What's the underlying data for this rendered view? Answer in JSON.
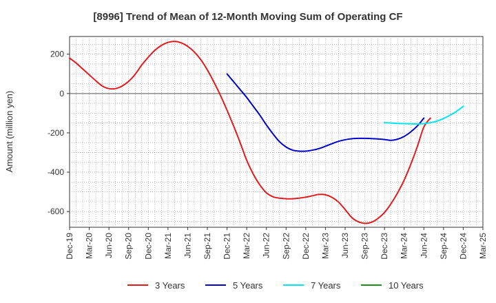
{
  "chart_data": {
    "type": "line",
    "title": "[8996]  Trend of Mean of 12-Month Moving Sum of Operating CF",
    "xlabel": "",
    "ylabel": "Amount (million yen)",
    "ylim": [
      -680,
      290
    ],
    "yticks": [
      200,
      0,
      -200,
      -400,
      -600
    ],
    "grid": true,
    "legend_position": "bottom",
    "x_tick_labels": [
      "Dec-19",
      "Mar-20",
      "Jun-20",
      "Sep-20",
      "Dec-20",
      "Mar-21",
      "Jun-21",
      "Sep-21",
      "Dec-21",
      "Mar-22",
      "Jun-22",
      "Sep-22",
      "Dec-22",
      "Mar-23",
      "Jun-23",
      "Sep-23",
      "Dec-23",
      "Mar-24",
      "Jun-24",
      "Sep-24",
      "Dec-24",
      "Mar-25"
    ],
    "series": [
      {
        "name": "3 Years",
        "color": "#e31a1c",
        "points": [
          [
            0,
            180
          ],
          [
            1,
            155
          ],
          [
            2,
            125
          ],
          [
            3,
            95
          ],
          [
            4,
            65
          ],
          [
            5,
            38
          ],
          [
            6,
            25
          ],
          [
            7,
            25
          ],
          [
            8,
            38
          ],
          [
            9,
            62
          ],
          [
            10,
            98
          ],
          [
            11,
            145
          ],
          [
            12,
            185
          ],
          [
            13,
            220
          ],
          [
            14,
            245
          ],
          [
            15,
            260
          ],
          [
            16,
            265
          ],
          [
            17,
            258
          ],
          [
            18,
            240
          ],
          [
            19,
            212
          ],
          [
            20,
            172
          ],
          [
            21,
            120
          ],
          [
            22,
            58
          ],
          [
            23,
            -10
          ],
          [
            24,
            -85
          ],
          [
            25,
            -165
          ],
          [
            26,
            -250
          ],
          [
            27,
            -340
          ],
          [
            28,
            -410
          ],
          [
            29,
            -465
          ],
          [
            30,
            -505
          ],
          [
            31,
            -525
          ],
          [
            32,
            -532
          ],
          [
            33,
            -535
          ],
          [
            34,
            -535
          ],
          [
            35,
            -532
          ],
          [
            36,
            -527
          ],
          [
            37,
            -520
          ],
          [
            38,
            -513
          ],
          [
            39,
            -515
          ],
          [
            40,
            -528
          ],
          [
            41,
            -552
          ],
          [
            42,
            -590
          ],
          [
            43,
            -630
          ],
          [
            44,
            -652
          ],
          [
            45,
            -660
          ],
          [
            46,
            -655
          ],
          [
            47,
            -635
          ],
          [
            48,
            -605
          ],
          [
            49,
            -560
          ],
          [
            50,
            -505
          ],
          [
            51,
            -440
          ],
          [
            52,
            -360
          ],
          [
            53,
            -270
          ],
          [
            54,
            -170
          ],
          [
            55,
            -125
          ]
        ]
      },
      {
        "name": "5 Years",
        "color": "#0000cc",
        "points": [
          [
            24,
            100
          ],
          [
            25,
            60
          ],
          [
            26,
            20
          ],
          [
            27,
            -20
          ],
          [
            28,
            -65
          ],
          [
            29,
            -110
          ],
          [
            30,
            -160
          ],
          [
            31,
            -205
          ],
          [
            32,
            -245
          ],
          [
            33,
            -272
          ],
          [
            34,
            -288
          ],
          [
            35,
            -293
          ],
          [
            36,
            -293
          ],
          [
            37,
            -288
          ],
          [
            38,
            -280
          ],
          [
            39,
            -268
          ],
          [
            40,
            -255
          ],
          [
            41,
            -243
          ],
          [
            42,
            -235
          ],
          [
            43,
            -230
          ],
          [
            44,
            -228
          ],
          [
            45,
            -228
          ],
          [
            46,
            -229
          ],
          [
            47,
            -231
          ],
          [
            48,
            -234
          ],
          [
            49,
            -238
          ],
          [
            50,
            -232
          ],
          [
            51,
            -218
          ],
          [
            52,
            -195
          ],
          [
            53,
            -165
          ],
          [
            54,
            -125
          ]
        ]
      },
      {
        "name": "7 Years",
        "color": "#00e5ee",
        "points": [
          [
            48,
            -148
          ],
          [
            49,
            -150
          ],
          [
            50,
            -152
          ],
          [
            51,
            -153
          ],
          [
            52,
            -154
          ],
          [
            53,
            -155
          ],
          [
            54,
            -153
          ],
          [
            55,
            -148
          ],
          [
            56,
            -140
          ],
          [
            57,
            -127
          ],
          [
            58,
            -110
          ],
          [
            59,
            -90
          ],
          [
            60,
            -65
          ]
        ]
      },
      {
        "name": "10 Years",
        "color": "#1a8c1a",
        "points": []
      }
    ]
  }
}
